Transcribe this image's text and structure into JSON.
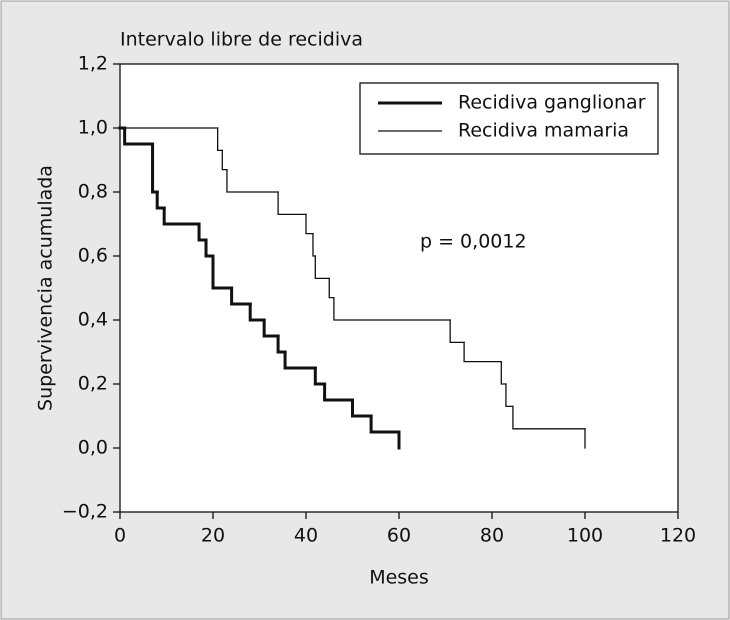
{
  "chart_data": {
    "type": "step",
    "title": "Intervalo libre de recidiva",
    "xlabel": "Meses",
    "ylabel": "Supervivencia acumulada",
    "annotation": "p = 0,0012",
    "xlim": [
      0,
      120
    ],
    "ylim": [
      -0.2,
      1.2
    ],
    "xticks": [
      0,
      20,
      40,
      60,
      80,
      100,
      120
    ],
    "yticks": [
      {
        "value": -0.2,
        "label": "−0,2"
      },
      {
        "value": 0,
        "label": "0,0"
      },
      {
        "value": 0.2,
        "label": "0,2"
      },
      {
        "value": 0.4,
        "label": "0,4"
      },
      {
        "value": 0.6,
        "label": "0,6"
      },
      {
        "value": 0.8,
        "label": "0,8"
      },
      {
        "value": 1.0,
        "label": "1,0"
      },
      {
        "value": 1.2,
        "label": "1,2"
      }
    ],
    "legend": "upper right",
    "series": [
      {
        "name": "Recidiva ganglionar",
        "color": "#111111",
        "width": 3,
        "x": [
          0,
          1,
          7,
          8,
          9.5,
          17,
          18.5,
          20,
          24,
          28,
          31,
          34,
          35.5,
          42,
          44,
          50,
          54,
          60
        ],
        "values": [
          1.0,
          0.95,
          0.8,
          0.75,
          0.7,
          0.65,
          0.6,
          0.5,
          0.45,
          0.4,
          0.35,
          0.3,
          0.25,
          0.2,
          0.15,
          0.1,
          0.05,
          0.0
        ]
      },
      {
        "name": "Recidiva mamaria",
        "color": "#111111",
        "width": 1.3,
        "x": [
          0,
          21,
          22,
          23,
          34,
          40,
          41.5,
          42,
          45,
          46,
          71,
          74,
          82,
          83,
          84.5,
          100
        ],
        "values": [
          1.0,
          0.93,
          0.87,
          0.8,
          0.73,
          0.67,
          0.6,
          0.53,
          0.47,
          0.4,
          0.33,
          0.27,
          0.2,
          0.13,
          0.06,
          0.0
        ]
      }
    ]
  }
}
